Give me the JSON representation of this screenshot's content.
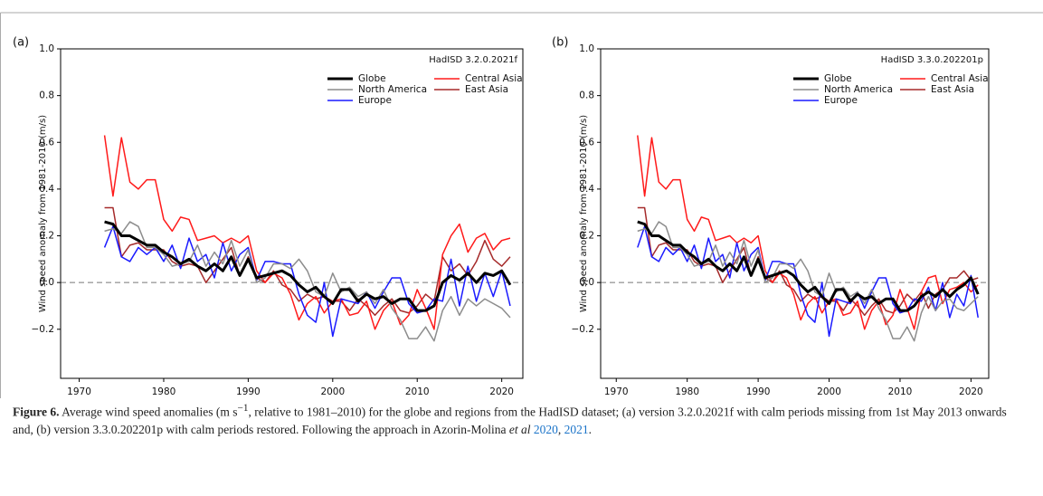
{
  "chart_data": [
    {
      "type": "line",
      "panel_label": "(a)",
      "annotation": "HadISD 3.2.0.2021f",
      "ylabel": "Wind speed anomaly from 1981-2010 (m/s)",
      "x": [
        1973,
        1974,
        1975,
        1976,
        1977,
        1978,
        1979,
        1980,
        1981,
        1982,
        1983,
        1984,
        1985,
        1986,
        1987,
        1988,
        1989,
        1990,
        1991,
        1992,
        1993,
        1994,
        1995,
        1996,
        1997,
        1998,
        1999,
        2000,
        2001,
        2002,
        2003,
        2004,
        2005,
        2006,
        2007,
        2008,
        2009,
        2010,
        2011,
        2012,
        2013,
        2014,
        2015,
        2016,
        2017,
        2018,
        2019,
        2020,
        2021
      ],
      "xlim": [
        1967.8,
        2022.5
      ],
      "xticks": [
        1970,
        1980,
        1990,
        2000,
        2010,
        2020
      ],
      "ylim": [
        -0.41,
        1.0
      ],
      "yticks": [
        {
          "value": -0.2,
          "label": "−0.2"
        },
        {
          "value": 0,
          "label": "0.0"
        },
        {
          "value": 0.2,
          "label": "0.2"
        },
        {
          "value": 0.4,
          "label": "0.4"
        },
        {
          "value": 0.6,
          "label": "0.6"
        },
        {
          "value": 0.8,
          "label": "0.8"
        },
        {
          "value": 1,
          "label": "1.0"
        }
      ],
      "hline": 0,
      "legend": "upper right",
      "series": [
        {
          "name": "Globe",
          "color": "#000000",
          "linewidth": 3,
          "values": [
            0.26,
            0.25,
            0.2,
            0.2,
            0.18,
            0.16,
            0.16,
            0.13,
            0.11,
            0.08,
            0.1,
            0.07,
            0.05,
            0.08,
            0.05,
            0.11,
            0.03,
            0.1,
            0.02,
            0.03,
            0.04,
            0.05,
            0.03,
            -0.01,
            -0.04,
            -0.02,
            -0.06,
            -0.09,
            -0.03,
            -0.03,
            -0.08,
            -0.05,
            -0.07,
            -0.06,
            -0.09,
            -0.07,
            -0.07,
            -0.12,
            -0.12,
            -0.1,
            0.0,
            0.03,
            0.01,
            0.04,
            0.0,
            0.04,
            0.03,
            0.05,
            -0.01
          ]
        },
        {
          "name": "North America",
          "color": "#8c8c8c",
          "linewidth": 1.5,
          "values": [
            0.22,
            0.23,
            0.21,
            0.26,
            0.24,
            0.15,
            0.15,
            0.12,
            0.07,
            0.08,
            0.09,
            0.16,
            0.07,
            0.13,
            0.08,
            0.18,
            0.07,
            0.14,
            0.0,
            0.02,
            0.08,
            0.08,
            0.06,
            0.1,
            0.05,
            -0.04,
            -0.06,
            0.04,
            -0.04,
            -0.02,
            -0.06,
            -0.04,
            -0.09,
            -0.03,
            -0.11,
            -0.16,
            -0.24,
            -0.24,
            -0.19,
            -0.25,
            -0.12,
            -0.06,
            -0.14,
            -0.07,
            -0.1,
            -0.07,
            -0.09,
            -0.11,
            -0.15
          ]
        },
        {
          "name": "Europe",
          "color": "#1a1aff",
          "linewidth": 1.5,
          "values": [
            0.15,
            0.24,
            0.11,
            0.09,
            0.15,
            0.12,
            0.15,
            0.09,
            0.16,
            0.06,
            0.19,
            0.09,
            0.12,
            0.02,
            0.17,
            0.05,
            0.12,
            0.15,
            0.01,
            0.09,
            0.09,
            0.08,
            0.08,
            -0.05,
            -0.14,
            -0.17,
            0.0,
            -0.23,
            -0.07,
            -0.08,
            -0.09,
            -0.04,
            -0.11,
            -0.04,
            0.02,
            0.02,
            -0.09,
            -0.13,
            -0.12,
            -0.07,
            -0.08,
            0.1,
            -0.1,
            0.07,
            -0.08,
            0.04,
            -0.06,
            0.05,
            -0.1
          ]
        },
        {
          "name": "Central Asia",
          "color": "#ff1a1a",
          "linewidth": 1.5,
          "values": [
            0.63,
            0.37,
            0.62,
            0.43,
            0.4,
            0.44,
            0.44,
            0.27,
            0.22,
            0.28,
            0.27,
            0.18,
            0.19,
            0.2,
            0.17,
            0.19,
            0.17,
            0.2,
            0.05,
            0.0,
            0.04,
            0.02,
            -0.05,
            -0.16,
            -0.09,
            -0.06,
            -0.13,
            -0.08,
            -0.07,
            -0.14,
            -0.13,
            -0.08,
            -0.2,
            -0.12,
            -0.08,
            -0.18,
            -0.14,
            -0.03,
            -0.11,
            -0.2,
            0.12,
            0.2,
            0.25,
            0.13,
            0.19,
            0.21,
            0.14,
            0.18,
            0.19
          ]
        },
        {
          "name": "East Asia",
          "color": "#a52a2a",
          "linewidth": 1.5,
          "values": [
            0.32,
            0.32,
            0.11,
            0.16,
            0.17,
            0.14,
            0.14,
            0.14,
            0.09,
            0.07,
            0.08,
            0.07,
            0.0,
            0.05,
            0.1,
            0.15,
            0.03,
            0.11,
            0.02,
            0.0,
            0.05,
            -0.01,
            -0.03,
            -0.08,
            -0.05,
            -0.07,
            -0.06,
            -0.08,
            -0.08,
            -0.12,
            -0.07,
            -0.1,
            -0.14,
            -0.1,
            -0.07,
            -0.12,
            -0.13,
            -0.1,
            -0.05,
            -0.08,
            0.11,
            0.05,
            0.08,
            0.03,
            0.09,
            0.18,
            0.1,
            0.07,
            0.11
          ]
        }
      ]
    },
    {
      "type": "line",
      "panel_label": "(b)",
      "annotation": "HadISD 3.3.0.202201p",
      "ylabel": "Wind speed anomaly from 1981-2010 (m/s)",
      "x": [
        1973,
        1974,
        1975,
        1976,
        1977,
        1978,
        1979,
        1980,
        1981,
        1982,
        1983,
        1984,
        1985,
        1986,
        1987,
        1988,
        1989,
        1990,
        1991,
        1992,
        1993,
        1994,
        1995,
        1996,
        1997,
        1998,
        1999,
        2000,
        2001,
        2002,
        2003,
        2004,
        2005,
        2006,
        2007,
        2008,
        2009,
        2010,
        2011,
        2012,
        2013,
        2014,
        2015,
        2016,
        2017,
        2018,
        2019,
        2020,
        2021
      ],
      "xlim": [
        1967.8,
        2022.5
      ],
      "xticks": [
        1970,
        1980,
        1990,
        2000,
        2010,
        2020
      ],
      "ylim": [
        -0.41,
        1.0
      ],
      "yticks": [
        {
          "value": -0.2,
          "label": "−0.2"
        },
        {
          "value": 0,
          "label": "0.0"
        },
        {
          "value": 0.2,
          "label": "0.2"
        },
        {
          "value": 0.4,
          "label": "0.4"
        },
        {
          "value": 0.6,
          "label": "0.6"
        },
        {
          "value": 0.8,
          "label": "0.8"
        },
        {
          "value": 1,
          "label": "1.0"
        }
      ],
      "hline": 0,
      "legend": "upper right",
      "series": [
        {
          "name": "Globe",
          "color": "#000000",
          "linewidth": 3,
          "values": [
            0.26,
            0.25,
            0.2,
            0.2,
            0.18,
            0.16,
            0.16,
            0.13,
            0.11,
            0.08,
            0.1,
            0.07,
            0.05,
            0.08,
            0.05,
            0.11,
            0.03,
            0.1,
            0.02,
            0.03,
            0.04,
            0.05,
            0.03,
            -0.01,
            -0.04,
            -0.02,
            -0.06,
            -0.09,
            -0.03,
            -0.03,
            -0.08,
            -0.05,
            -0.07,
            -0.06,
            -0.09,
            -0.07,
            -0.07,
            -0.12,
            -0.12,
            -0.1,
            -0.06,
            -0.04,
            -0.06,
            -0.03,
            -0.06,
            -0.03,
            -0.01,
            0.02,
            -0.05
          ]
        },
        {
          "name": "North America",
          "color": "#8c8c8c",
          "linewidth": 1.5,
          "values": [
            0.22,
            0.23,
            0.21,
            0.26,
            0.24,
            0.15,
            0.15,
            0.12,
            0.07,
            0.08,
            0.09,
            0.16,
            0.07,
            0.13,
            0.08,
            0.18,
            0.07,
            0.14,
            0.0,
            0.02,
            0.08,
            0.08,
            0.06,
            0.1,
            0.05,
            -0.04,
            -0.06,
            0.04,
            -0.04,
            -0.02,
            -0.06,
            -0.04,
            -0.09,
            -0.03,
            -0.11,
            -0.16,
            -0.24,
            -0.24,
            -0.19,
            -0.25,
            -0.13,
            -0.06,
            -0.12,
            -0.08,
            -0.07,
            -0.11,
            -0.12,
            -0.09,
            -0.06
          ]
        },
        {
          "name": "Europe",
          "color": "#1a1aff",
          "linewidth": 1.5,
          "values": [
            0.15,
            0.24,
            0.11,
            0.09,
            0.15,
            0.12,
            0.15,
            0.09,
            0.16,
            0.06,
            0.19,
            0.09,
            0.12,
            0.02,
            0.17,
            0.05,
            0.12,
            0.15,
            0.01,
            0.09,
            0.09,
            0.08,
            0.08,
            -0.05,
            -0.14,
            -0.17,
            0.0,
            -0.23,
            -0.07,
            -0.08,
            -0.09,
            -0.04,
            -0.11,
            -0.04,
            0.02,
            0.02,
            -0.09,
            -0.13,
            -0.12,
            -0.07,
            -0.08,
            -0.02,
            -0.12,
            0.0,
            -0.15,
            -0.05,
            -0.1,
            0.03,
            -0.15
          ]
        },
        {
          "name": "Central Asia",
          "color": "#ff1a1a",
          "linewidth": 1.5,
          "values": [
            0.63,
            0.37,
            0.62,
            0.43,
            0.4,
            0.44,
            0.44,
            0.27,
            0.22,
            0.28,
            0.27,
            0.18,
            0.19,
            0.2,
            0.17,
            0.19,
            0.17,
            0.2,
            0.05,
            0.0,
            0.04,
            0.02,
            -0.05,
            -0.16,
            -0.09,
            -0.06,
            -0.13,
            -0.08,
            -0.07,
            -0.14,
            -0.13,
            -0.08,
            -0.2,
            -0.12,
            -0.08,
            -0.18,
            -0.14,
            -0.03,
            -0.11,
            -0.2,
            -0.04,
            0.02,
            0.03,
            -0.09,
            -0.03,
            -0.02,
            0.0,
            -0.04,
            -0.01
          ]
        },
        {
          "name": "East Asia",
          "color": "#a52a2a",
          "linewidth": 1.5,
          "values": [
            0.32,
            0.32,
            0.11,
            0.16,
            0.17,
            0.14,
            0.14,
            0.14,
            0.09,
            0.07,
            0.08,
            0.07,
            0.0,
            0.05,
            0.1,
            0.15,
            0.03,
            0.11,
            0.02,
            0.0,
            0.05,
            -0.01,
            -0.03,
            -0.08,
            -0.05,
            -0.07,
            -0.06,
            -0.08,
            -0.08,
            -0.12,
            -0.07,
            -0.1,
            -0.14,
            -0.1,
            -0.07,
            -0.12,
            -0.13,
            -0.1,
            -0.05,
            -0.08,
            -0.04,
            -0.11,
            -0.05,
            -0.03,
            0.02,
            0.02,
            0.05,
            0.01,
            0.02
          ]
        }
      ]
    }
  ],
  "caption": {
    "label": "Figure 6.",
    "text1": "Average wind speed anomalies (m s",
    "sup": "−1",
    "text2": ", relative to 1981–2010) for the globe and regions from the HadISD dataset; (a) version 3.2.0.2021f with calm periods missing from 1st May 2013 onwards and, (b) version 3.3.0.202201p with calm periods restored. Following the approach in Azorin-Molina ",
    "em": "et al",
    "ref1": "2020",
    "sep": ", ",
    "ref2": "2021",
    "end": "."
  }
}
